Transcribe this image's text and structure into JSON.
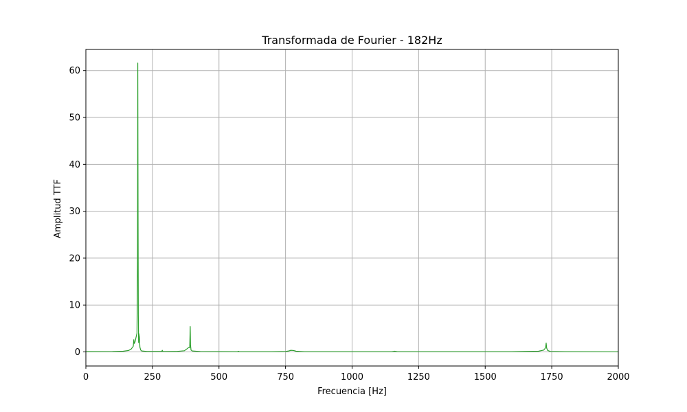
{
  "chart_data": {
    "type": "line",
    "title": "Transformada de Fourier - 182Hz",
    "xlabel": "Frecuencia [Hz]",
    "ylabel": "Amplitud TTF",
    "xlim": [
      0,
      2000
    ],
    "ylim": [
      -3,
      64.5
    ],
    "xticks": [
      0,
      250,
      500,
      750,
      1000,
      1250,
      1500,
      1750,
      2000
    ],
    "yticks": [
      0,
      10,
      20,
      30,
      40,
      50,
      60
    ],
    "grid": true,
    "colors": {
      "line": "#2ca02c",
      "grid": "#b0b0b0",
      "axis": "#000000"
    },
    "series": [
      {
        "values": [
          [
            0,
            0.05
          ],
          [
            100,
            0.08
          ],
          [
            140,
            0.15
          ],
          [
            160,
            0.3
          ],
          [
            170,
            0.6
          ],
          [
            178,
            1.2
          ],
          [
            180,
            2.6
          ],
          [
            182,
            1.8
          ],
          [
            185,
            2.2
          ],
          [
            188,
            3.0
          ],
          [
            192,
            4.0
          ],
          [
            194,
            20.0
          ],
          [
            195,
            61.6
          ],
          [
            196,
            30.0
          ],
          [
            197,
            8.0
          ],
          [
            198,
            2.0
          ],
          [
            199,
            3.9
          ],
          [
            201,
            3.2
          ],
          [
            203,
            1.0
          ],
          [
            206,
            0.4
          ],
          [
            210,
            0.2
          ],
          [
            230,
            0.1
          ],
          [
            285,
            0.1
          ],
          [
            287,
            0.35
          ],
          [
            289,
            0.08
          ],
          [
            340,
            0.1
          ],
          [
            370,
            0.25
          ],
          [
            383,
            0.8
          ],
          [
            388,
            1.0
          ],
          [
            390,
            0.9
          ],
          [
            392,
            5.4
          ],
          [
            393,
            1.5
          ],
          [
            395,
            0.4
          ],
          [
            400,
            0.2
          ],
          [
            430,
            0.08
          ],
          [
            570,
            0.05
          ],
          [
            573,
            0.15
          ],
          [
            576,
            0.05
          ],
          [
            700,
            0.05
          ],
          [
            750,
            0.1
          ],
          [
            762,
            0.2
          ],
          [
            770,
            0.35
          ],
          [
            780,
            0.3
          ],
          [
            790,
            0.15
          ],
          [
            820,
            0.05
          ],
          [
            1150,
            0.05
          ],
          [
            1160,
            0.15
          ],
          [
            1170,
            0.05
          ],
          [
            1600,
            0.05
          ],
          [
            1700,
            0.15
          ],
          [
            1720,
            0.4
          ],
          [
            1727,
            0.9
          ],
          [
            1729,
            1.9
          ],
          [
            1731,
            0.8
          ],
          [
            1735,
            0.3
          ],
          [
            1745,
            0.1
          ],
          [
            1800,
            0.05
          ],
          [
            2000,
            0.03
          ]
        ]
      }
    ]
  }
}
